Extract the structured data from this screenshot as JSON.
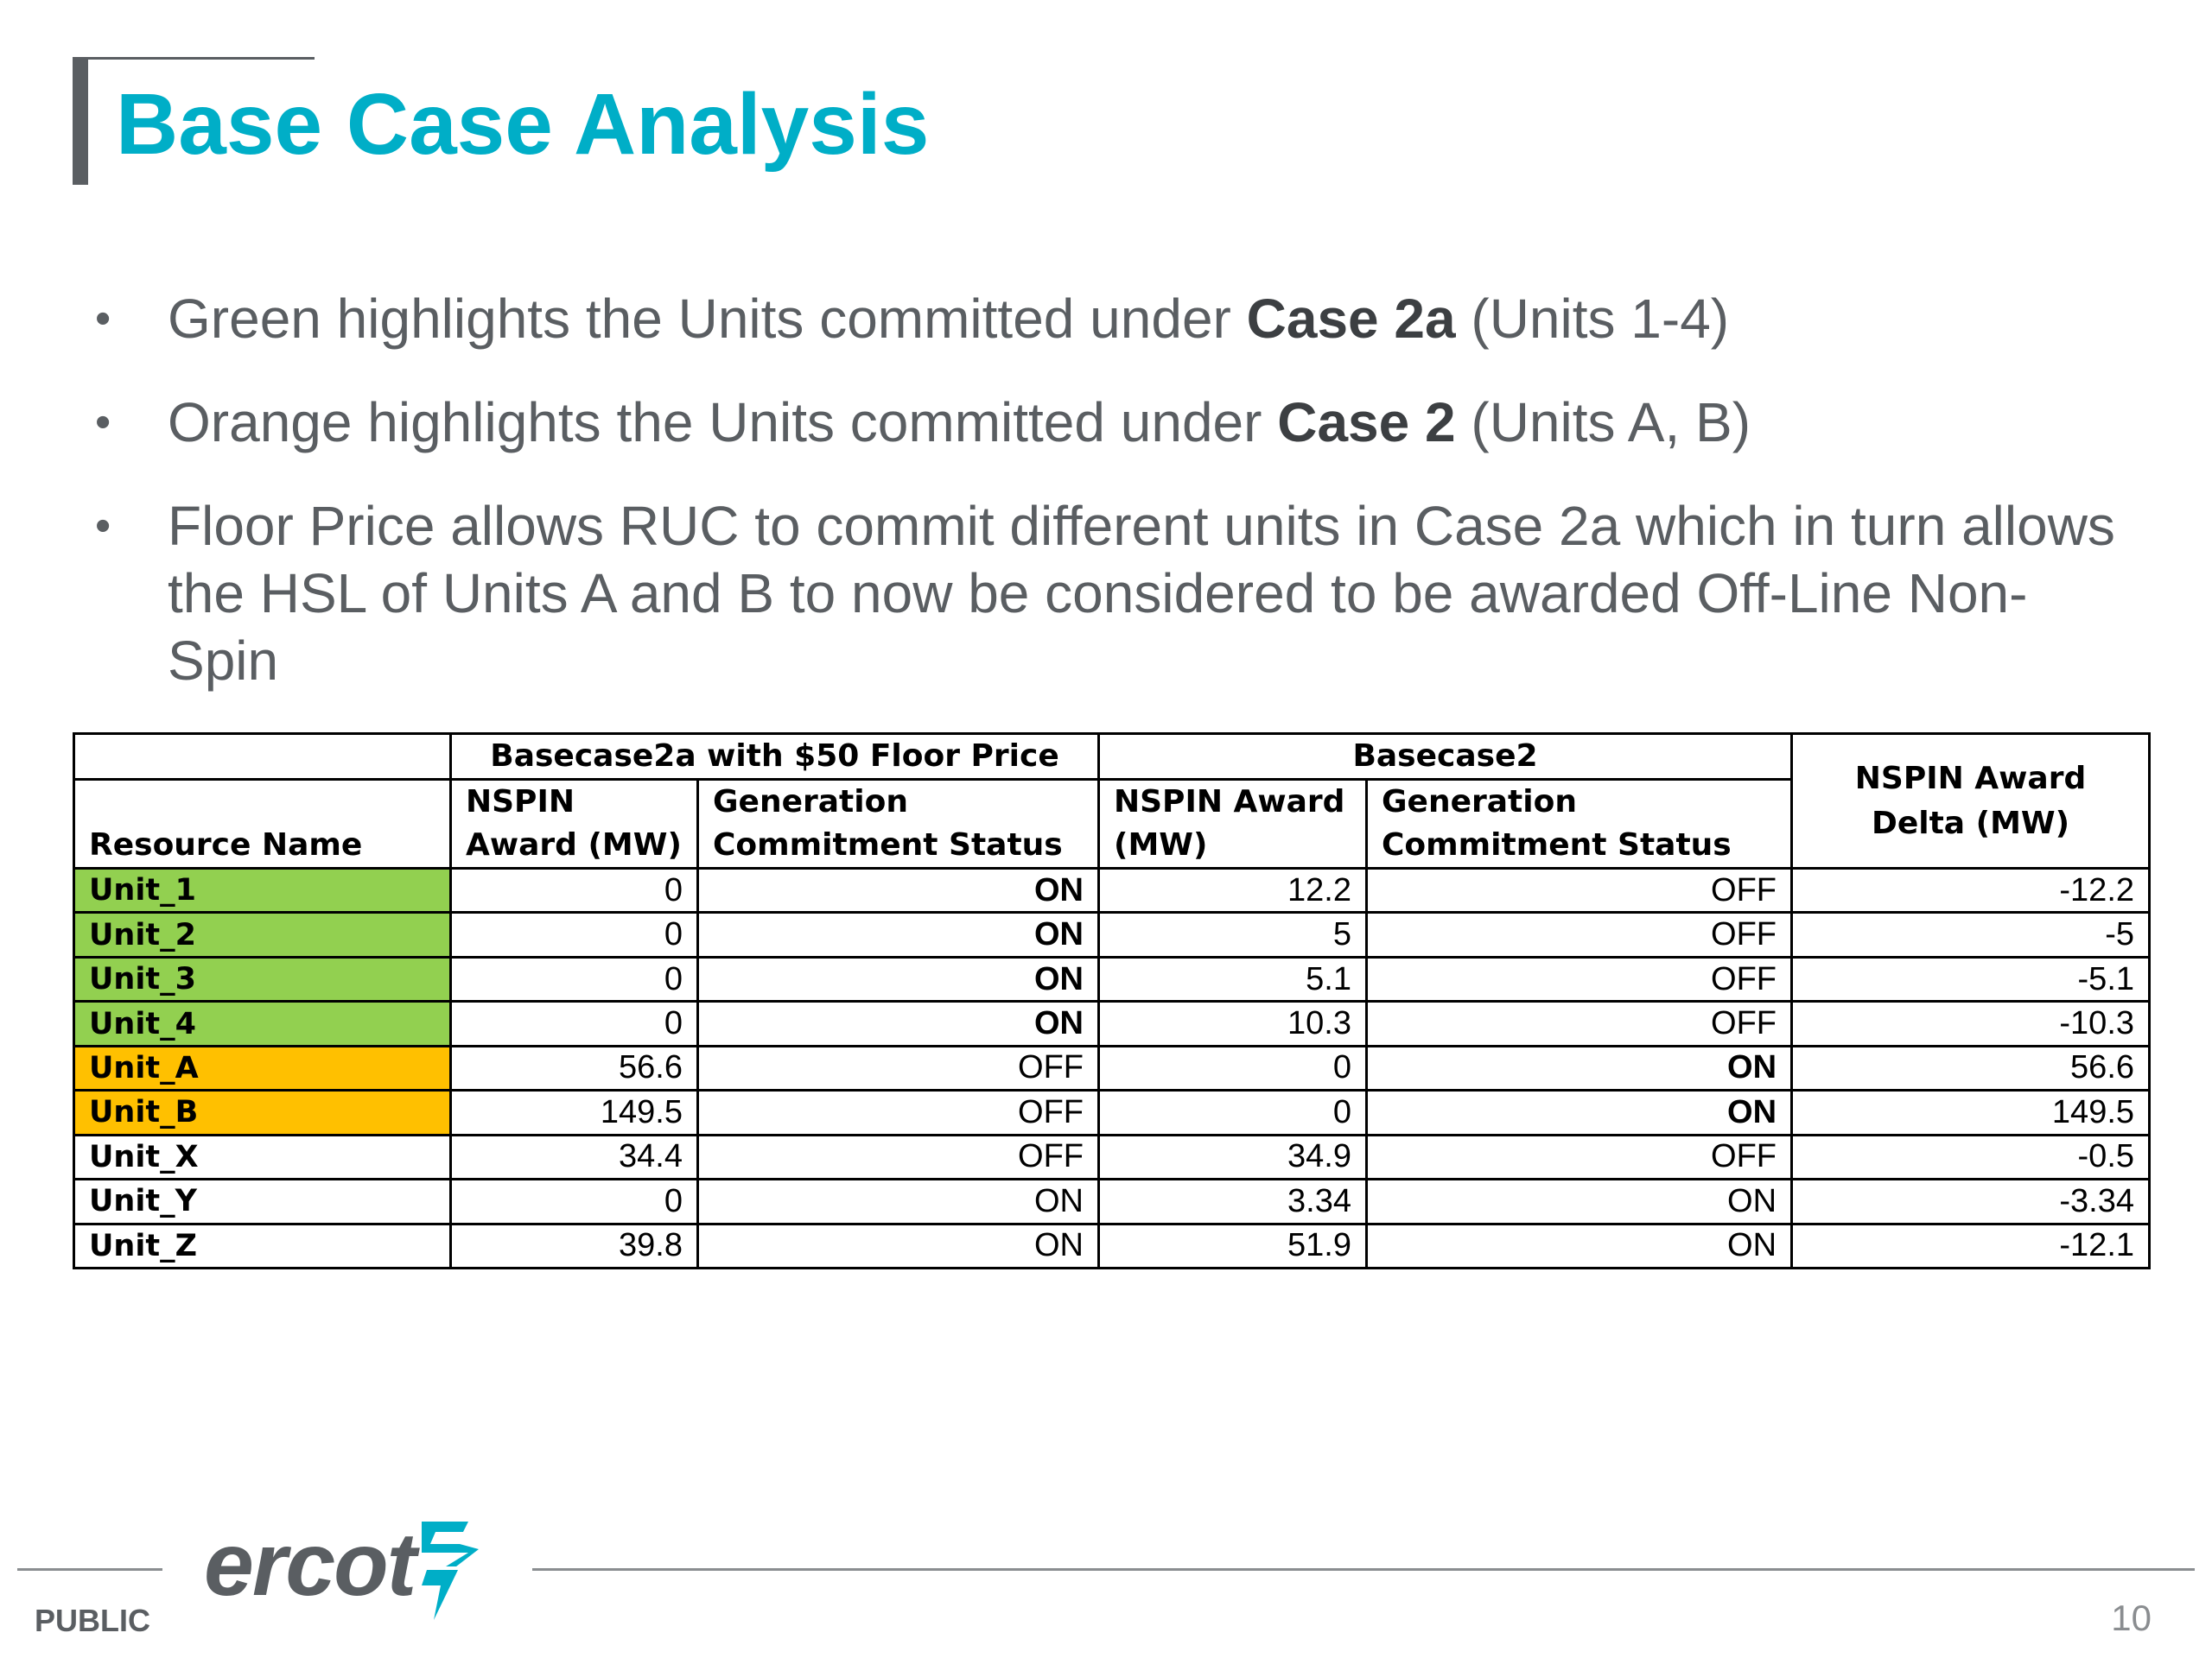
{
  "title": "Base Case Analysis",
  "bullets": [
    {
      "before": "Green highlights the Units committed under ",
      "bold": "Case 2a",
      "after": " (Units 1-4)"
    },
    {
      "before": "Orange highlights the Units committed under ",
      "bold": "Case 2",
      "after": " (Units A, B)"
    },
    {
      "text": "Floor Price allows RUC to commit different units in Case 2a which in turn allows the HSL of Units A and B to now be considered to be awarded Off-Line Non-Spin"
    }
  ],
  "table": {
    "group_headers": {
      "case2a": "Basecase2a with $50 Floor Price",
      "case2": "Basecase2",
      "delta": "NSPIN Award Delta (MW)"
    },
    "columns": {
      "resource": "Resource Name",
      "nspin2a": "NSPIN Award (MW)",
      "gen2a": "Generation Commitment Status",
      "nspin2": "NSPIN Award (MW)",
      "gen2": "Generation Commitment Status"
    },
    "rows": [
      {
        "name": "Unit_1",
        "nspin2a": "0",
        "gen2a": "ON",
        "nspin2": "12.2",
        "gen2": "OFF",
        "delta": "-12.2"
      },
      {
        "name": "Unit_2",
        "nspin2a": "0",
        "gen2a": "ON",
        "nspin2": "5",
        "gen2": "OFF",
        "delta": "-5"
      },
      {
        "name": "Unit_3",
        "nspin2a": "0",
        "gen2a": "ON",
        "nspin2": "5.1",
        "gen2": "OFF",
        "delta": "-5.1"
      },
      {
        "name": "Unit_4",
        "nspin2a": "0",
        "gen2a": "ON",
        "nspin2": "10.3",
        "gen2": "OFF",
        "delta": "-10.3"
      },
      {
        "name": "Unit_A",
        "nspin2a": "56.6",
        "gen2a": "OFF",
        "nspin2": "0",
        "gen2": "ON",
        "delta": "56.6"
      },
      {
        "name": "Unit_B",
        "nspin2a": "149.5",
        "gen2a": "OFF",
        "nspin2": "0",
        "gen2": "ON",
        "delta": "149.5"
      },
      {
        "name": "Unit_X",
        "nspin2a": "34.4",
        "gen2a": "OFF",
        "nspin2": "34.9",
        "gen2": "OFF",
        "delta": "-0.5"
      },
      {
        "name": "Unit_Y",
        "nspin2a": "0",
        "gen2a": "ON",
        "nspin2": "3.34",
        "gen2": "ON",
        "delta": "-3.34"
      },
      {
        "name": "Unit_Z",
        "nspin2a": "39.8",
        "gen2a": "ON",
        "nspin2": "51.9",
        "gen2": "ON",
        "delta": "-12.1"
      }
    ],
    "highlight_colors": {
      "green": "#92d050",
      "orange": "#ffc000"
    }
  },
  "footer": {
    "classification": "PUBLIC",
    "logo_text": "ercot",
    "page_number": "10"
  },
  "colors": {
    "title": "#00aec7",
    "body_text": "#5a5e62"
  }
}
